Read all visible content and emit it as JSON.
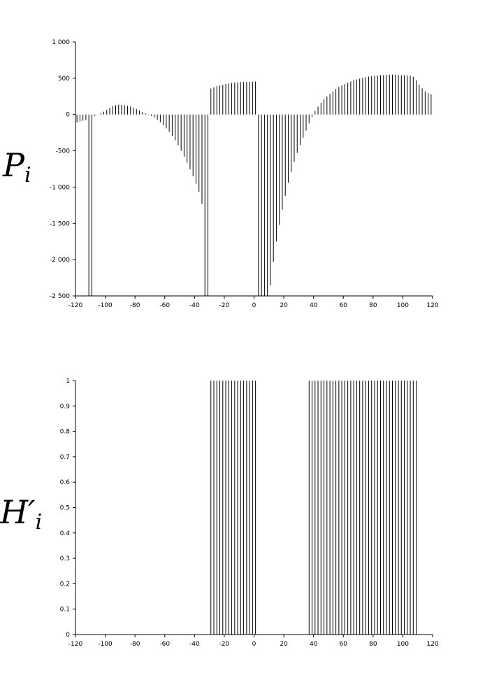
{
  "chart_data": [
    {
      "type": "stem",
      "ylabel": "P",
      "ylabel_subscript": "i",
      "color": "#000000",
      "x": [
        -119,
        -117,
        -115,
        -113,
        -111,
        -109,
        -107,
        -105,
        -103,
        -101,
        -99,
        -97,
        -95,
        -93,
        -91,
        -89,
        -87,
        -85,
        -83,
        -81,
        -79,
        -77,
        -75,
        -73,
        -71,
        -69,
        -67,
        -65,
        -63,
        -61,
        -59,
        -57,
        -55,
        -53,
        -51,
        -49,
        -47,
        -45,
        -43,
        -41,
        -39,
        -37,
        -35,
        -33,
        -31,
        -29,
        -27,
        -25,
        -23,
        -21,
        -19,
        -17,
        -15,
        -13,
        -11,
        -9,
        -7,
        -5,
        -3,
        -1,
        1,
        3,
        5,
        7,
        9,
        11,
        13,
        15,
        17,
        19,
        21,
        23,
        25,
        27,
        29,
        31,
        33,
        35,
        37,
        39,
        41,
        43,
        45,
        47,
        49,
        51,
        53,
        55,
        57,
        59,
        61,
        63,
        65,
        67,
        69,
        71,
        73,
        75,
        77,
        79,
        81,
        83,
        85,
        87,
        89,
        91,
        93,
        95,
        97,
        99,
        101,
        103,
        105,
        107,
        109,
        111,
        113,
        115,
        117,
        119
      ],
      "values": [
        -110,
        -95,
        -85,
        -75,
        -2500,
        -2500,
        -20,
        0,
        20,
        40,
        65,
        90,
        115,
        130,
        135,
        132,
        128,
        120,
        110,
        95,
        75,
        55,
        35,
        15,
        -5,
        -20,
        -40,
        -70,
        -105,
        -145,
        -190,
        -240,
        -295,
        -355,
        -425,
        -500,
        -580,
        -665,
        -755,
        -850,
        -955,
        -1065,
        -1230,
        -2500,
        -2500,
        360,
        375,
        390,
        400,
        410,
        420,
        428,
        435,
        440,
        443,
        446,
        448,
        450,
        452,
        453,
        455,
        -2500,
        -2500,
        -2500,
        -2500,
        -2350,
        -2030,
        -1750,
        -1520,
        -1310,
        -1120,
        -940,
        -790,
        -650,
        -530,
        -420,
        -320,
        -220,
        -120,
        -30,
        50,
        110,
        160,
        210,
        250,
        285,
        320,
        350,
        380,
        400,
        420,
        440,
        455,
        470,
        485,
        495,
        505,
        515,
        522,
        528,
        533,
        538,
        542,
        545,
        547,
        549,
        550,
        548,
        545,
        542,
        540,
        538,
        535,
        520,
        470,
        410,
        360,
        320,
        295,
        280
      ],
      "xlim": [
        -120,
        120
      ],
      "xticks": [
        -120,
        -100,
        -80,
        -60,
        -40,
        -20,
        0,
        20,
        40,
        60,
        80,
        100,
        120
      ],
      "ylim": [
        -2500,
        1000
      ],
      "yticks": [
        {
          "value": -2500,
          "label": "-2 500"
        },
        {
          "value": -2000,
          "label": "-2 000"
        },
        {
          "value": -1500,
          "label": "-1 500"
        },
        {
          "value": -1000,
          "label": "-1 000"
        },
        -500,
        0,
        500,
        {
          "value": 1000,
          "label": "1 000"
        }
      ]
    },
    {
      "type": "stem",
      "ylabel": "H′",
      "ylabel_subscript": "i",
      "color": "#000000",
      "x": [
        -119,
        -117,
        -115,
        -113,
        -111,
        -109,
        -107,
        -105,
        -103,
        -101,
        -99,
        -97,
        -95,
        -93,
        -91,
        -89,
        -87,
        -85,
        -83,
        -81,
        -79,
        -77,
        -75,
        -73,
        -71,
        -69,
        -67,
        -65,
        -63,
        -61,
        -59,
        -57,
        -55,
        -53,
        -51,
        -49,
        -47,
        -45,
        -43,
        -41,
        -39,
        -37,
        -35,
        -33,
        -31,
        -29,
        -27,
        -25,
        -23,
        -21,
        -19,
        -17,
        -15,
        -13,
        -11,
        -9,
        -7,
        -5,
        -3,
        -1,
        1,
        3,
        5,
        7,
        9,
        11,
        13,
        15,
        17,
        19,
        21,
        23,
        25,
        27,
        29,
        31,
        33,
        35,
        37,
        39,
        41,
        43,
        45,
        47,
        49,
        51,
        53,
        55,
        57,
        59,
        61,
        63,
        65,
        67,
        69,
        71,
        73,
        75,
        77,
        79,
        81,
        83,
        85,
        87,
        89,
        91,
        93,
        95,
        97,
        99,
        101,
        103,
        105,
        107,
        109,
        111,
        113,
        115,
        117,
        119
      ],
      "values": [
        0,
        0,
        0,
        0,
        0,
        0,
        0,
        0,
        0,
        0,
        0,
        0,
        0,
        0,
        0,
        0,
        0,
        0,
        0,
        0,
        0,
        0,
        0,
        0,
        0,
        0,
        0,
        0,
        0,
        0,
        0,
        0,
        0,
        0,
        0,
        0,
        0,
        0,
        0,
        0,
        0,
        0,
        0,
        0,
        0,
        1,
        1,
        1,
        1,
        1,
        1,
        1,
        1,
        1,
        1,
        1,
        1,
        1,
        1,
        1,
        1,
        0,
        0,
        0,
        0,
        0,
        0,
        0,
        0,
        0,
        0,
        0,
        0,
        0,
        0,
        0,
        0,
        0,
        1,
        1,
        1,
        1,
        1,
        1,
        1,
        1,
        1,
        1,
        1,
        1,
        1,
        1,
        1,
        1,
        1,
        1,
        1,
        1,
        1,
        1,
        1,
        1,
        1,
        1,
        1,
        1,
        1,
        1,
        1,
        1,
        1,
        1,
        1,
        1,
        1,
        0,
        0,
        0,
        0,
        0
      ],
      "xlim": [
        -120,
        120
      ],
      "xticks": [
        -120,
        -100,
        -80,
        -60,
        -40,
        -20,
        0,
        20,
        40,
        60,
        80,
        100,
        120
      ],
      "ylim": [
        0,
        1
      ],
      "yticks": [
        0,
        0.1,
        0.2,
        0.3,
        0.4,
        0.5,
        0.6,
        0.7,
        0.8,
        0.9,
        1
      ]
    }
  ]
}
